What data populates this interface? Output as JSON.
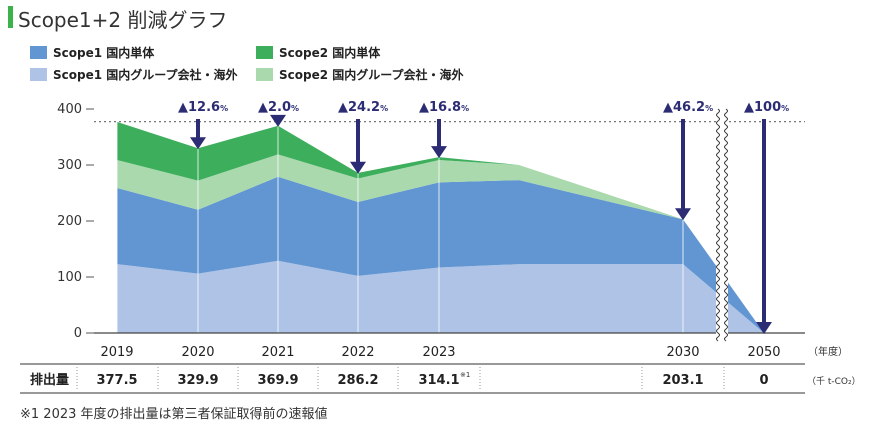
{
  "title": "Scope1+2 削減グラフ",
  "colors": {
    "scope1_domestic": "#6196d2",
    "scope1_group": "#aec3e5",
    "scope2_domestic": "#3dae5c",
    "scope2_group": "#a9d9ad",
    "arrow": "#2c2c74",
    "label": "#2c2c74",
    "title_bar": "#3bb24a"
  },
  "legend": [
    {
      "label": "Scope1 国内単体",
      "color_key": "scope1_domestic"
    },
    {
      "label": "Scope1 国内グループ会社・海外",
      "color_key": "scope1_group"
    },
    {
      "label": "Scope2 国内単体",
      "color_key": "scope2_domestic"
    },
    {
      "label": "Scope2 国内グループ会社・海外",
      "color_key": "scope2_group"
    }
  ],
  "table": {
    "row_label": "排出量",
    "values": [
      "377.5",
      "329.9",
      "369.9",
      "286.2",
      "314.1",
      "203.1",
      "0"
    ],
    "footnote_mark": "※1",
    "unit": "（千 t-CO₂）"
  },
  "footnote": "※1 2023 年度の排出量は第三者保証取得前の速報値",
  "chart_data": {
    "type": "area",
    "stacked": true,
    "x": [
      "2019",
      "2020",
      "2021",
      "2022",
      "2023",
      "2024",
      "2030",
      "2050"
    ],
    "x_tick_labels": [
      "2019",
      "2020",
      "2021",
      "2022",
      "2023",
      "",
      "2030",
      "2050"
    ],
    "xlabel": "（年度）",
    "yticks": [
      0,
      100,
      200,
      300,
      400
    ],
    "ylim": [
      0,
      400
    ],
    "reference_line": 377.5,
    "axis_break_between": [
      "2030",
      "2050"
    ],
    "series": [
      {
        "name": "Scope1 国内グループ会社・海外",
        "color_key": "scope1_group",
        "values": [
          123,
          106,
          129,
          102,
          117,
          123,
          123,
          0
        ]
      },
      {
        "name": "Scope1 国内単体",
        "color_key": "scope1_domestic",
        "values": [
          136,
          114,
          150,
          132,
          152,
          150,
          80,
          0
        ]
      },
      {
        "name": "Scope2 国内グループ会社・海外",
        "color_key": "scope2_group",
        "values": [
          50,
          52,
          40,
          42,
          40,
          27,
          0,
          0
        ]
      },
      {
        "name": "Scope2 国内単体",
        "color_key": "scope2_domestic",
        "values": [
          68,
          58,
          51,
          10,
          5,
          0,
          0,
          0
        ]
      }
    ],
    "annotations": [
      {
        "x": "2020",
        "text": "▲12.6",
        "suffix": "%",
        "arrow_to": 329.9
      },
      {
        "x": "2021",
        "text": "▲2.0",
        "suffix": "%",
        "arrow_to": 369.9
      },
      {
        "x": "2022",
        "text": "▲24.2",
        "suffix": "%",
        "arrow_to": 286.2
      },
      {
        "x": "2023",
        "text": "▲16.8",
        "suffix": "%",
        "arrow_to": 314.1
      },
      {
        "x": "2030",
        "text": "▲46.2",
        "suffix": "%",
        "arrow_to": 203.1
      },
      {
        "x": "2050",
        "text": "▲100",
        "suffix": "%",
        "arrow_to": 0
      }
    ]
  }
}
